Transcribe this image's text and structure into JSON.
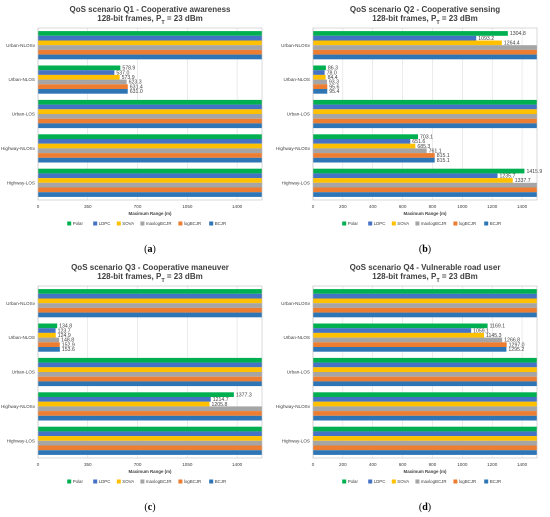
{
  "series": [
    {
      "name": "Polar",
      "color": "#00b050"
    },
    {
      "name": "LDPC",
      "color": "#4472c4"
    },
    {
      "name": "SOVA",
      "color": "#ffc000"
    },
    {
      "name": "maxlogBCJR",
      "color": "#a5a5a5"
    },
    {
      "name": "logBCJR",
      "color": "#ed7d31"
    },
    {
      "name": "BCJR",
      "color": "#2e75b6"
    }
  ],
  "panels": [
    {
      "label": "(a)",
      "title_line1": "QoS scenario Q1 - Cooperative awareness",
      "title_line2": "128-bit frames, P",
      "title_sub": "T",
      "title_tail": " = 23 dBm"
    },
    {
      "label": "(b)",
      "title_line1": "QoS scenario Q2 - Cooperative sensing",
      "title_line2": "128-bit frames, P",
      "title_sub": "T",
      "title_tail": " = 23 dBm"
    },
    {
      "label": "(c)",
      "title_line1": "QoS scenario Q3 - Cooperative maneuver",
      "title_line2": "128-bit frames, P",
      "title_sub": "T",
      "title_tail": " = 23 dBm"
    },
    {
      "label": "(d)",
      "title_line1": "QoS scenario Q4 - Vulnerable road user",
      "title_line2": "128-bit frames, P",
      "title_sub": "T",
      "title_tail": " = 23 dBm"
    }
  ],
  "chart_data": [
    {
      "type": "bar",
      "orientation": "horizontal",
      "title": "QoS scenario Q1 - Cooperative awareness 128-bit frames, PT = 23 dBm",
      "xlabel": "Maximum Range (m)",
      "ylabel": "",
      "xlim": [
        0,
        1575
      ],
      "xticks": [
        0,
        350,
        700,
        1050,
        1400
      ],
      "categories": [
        "Urban-NLOSv",
        "Urban-NLOS",
        "Urban-LOS",
        "Highway-NLOSv",
        "Highway-LOS"
      ],
      "series": [
        {
          "name": "Polar",
          "values": [
            1575,
            578.9,
            1575,
            1575,
            1575
          ],
          "labels": [
            "",
            "578.9",
            "",
            "",
            ""
          ]
        },
        {
          "name": "LDPC",
          "values": [
            1575,
            537.0,
            1575,
            1575,
            1575
          ],
          "labels": [
            "",
            "537.0",
            "",
            "",
            ""
          ]
        },
        {
          "name": "SOVA",
          "values": [
            1575,
            573.9,
            1575,
            1575,
            1575
          ],
          "labels": [
            "",
            "573.9",
            "",
            "",
            ""
          ]
        },
        {
          "name": "maxlogBCJR",
          "values": [
            1575,
            623.3,
            1575,
            1575,
            1575
          ],
          "labels": [
            "",
            "623.3",
            "",
            "",
            ""
          ]
        },
        {
          "name": "logBCJR",
          "values": [
            1575,
            631.4,
            1575,
            1575,
            1575
          ],
          "labels": [
            "",
            "631.4",
            "",
            "",
            ""
          ]
        },
        {
          "name": "BCJR",
          "values": [
            1575,
            631.0,
            1575,
            1575,
            1575
          ],
          "labels": [
            "",
            "631.0",
            "",
            "",
            ""
          ]
        }
      ],
      "legend": "bottom"
    },
    {
      "type": "bar",
      "orientation": "horizontal",
      "title": "QoS scenario Q2 - Cooperative sensing 128-bit frames, PT = 23 dBm",
      "xlabel": "Maximum Range (m)",
      "ylabel": "",
      "xlim": [
        0,
        1500
      ],
      "xticks": [
        0,
        200,
        400,
        600,
        800,
        1000,
        1200,
        1400
      ],
      "categories": [
        "Urban-NLOSv",
        "Urban-NLOS",
        "Urban-LOS",
        "Highway-NLOSv",
        "Highway-LOS"
      ],
      "series": [
        {
          "name": "Polar",
          "values": [
            1304.8,
            86.3,
            1500,
            703.1,
            1415.9
          ],
          "labels": [
            "1304.8",
            "86.3",
            "",
            "703.1",
            "1415.9"
          ]
        },
        {
          "name": "LDPC",
          "values": [
            1093.2,
            78.0,
            1500,
            651.6,
            1235.7
          ],
          "labels": [
            "1093.2",
            "78.0",
            "",
            "651.6",
            "1235.7"
          ]
        },
        {
          "name": "SOVA",
          "values": [
            1264.4,
            84.4,
            1500,
            685.3,
            1337.7
          ],
          "labels": [
            "1264.4",
            "84.4",
            "",
            "685.3",
            "1337.7"
          ]
        },
        {
          "name": "maxlogBCJR",
          "values": [
            1500,
            93.3,
            1500,
            761.1,
            1500
          ],
          "labels": [
            "",
            "93.3",
            "",
            "761.1",
            ""
          ]
        },
        {
          "name": "logBCJR",
          "values": [
            1500,
            95.6,
            1500,
            815.1,
            1500
          ],
          "labels": [
            "",
            "95.6",
            "",
            "815.1",
            ""
          ]
        },
        {
          "name": "BCJR",
          "values": [
            1500,
            95.4,
            1500,
            815.1,
            1500
          ],
          "labels": [
            "",
            "95.4",
            "",
            "815.1",
            ""
          ]
        }
      ],
      "legend": "bottom"
    },
    {
      "type": "bar",
      "orientation": "horizontal",
      "title": "QoS scenario Q3 - Cooperative maneuver 128-bit frames, PT = 23 dBm",
      "xlabel": "Maximum Range (m)",
      "ylabel": "",
      "xlim": [
        0,
        1575
      ],
      "xticks": [
        0,
        350,
        700,
        1050,
        1400
      ],
      "categories": [
        "Urban-NLOSv",
        "Urban-NLOS",
        "Urban-LOS",
        "Highway-NLOSv",
        "Highway-LOS"
      ],
      "series": [
        {
          "name": "Polar",
          "values": [
            1575,
            134.8,
            1575,
            1377.3,
            1575
          ],
          "labels": [
            "",
            "134.8",
            "",
            "1377.3",
            ""
          ]
        },
        {
          "name": "LDPC",
          "values": [
            1575,
            123.7,
            1575,
            1214.7,
            1575
          ],
          "labels": [
            "",
            "123.7",
            "",
            "1214.7",
            ""
          ]
        },
        {
          "name": "SOVA",
          "values": [
            1575,
            124.9,
            1575,
            1205.8,
            1575
          ],
          "labels": [
            "",
            "124.9",
            "",
            "1205.8",
            ""
          ]
        },
        {
          "name": "maxlogBCJR",
          "values": [
            1575,
            148.8,
            1575,
            1575,
            1575
          ],
          "labels": [
            "",
            "148.8",
            "",
            "",
            ""
          ]
        },
        {
          "name": "logBCJR",
          "values": [
            1575,
            152.9,
            1575,
            1575,
            1575
          ],
          "labels": [
            "",
            "152.9",
            "",
            "",
            ""
          ]
        },
        {
          "name": "BCJR",
          "values": [
            1575,
            153.6,
            1575,
            1575,
            1575
          ],
          "labels": [
            "",
            "153.6",
            "",
            "",
            ""
          ]
        }
      ],
      "legend": "bottom"
    },
    {
      "type": "bar",
      "orientation": "horizontal",
      "title": "QoS scenario Q4 - Vulnerable road user 128-bit frames, PT = 23 dBm",
      "xlabel": "Maximum Range (m)",
      "ylabel": "",
      "xlim": [
        0,
        1500
      ],
      "xticks": [
        0,
        200,
        400,
        600,
        800,
        1000,
        1200,
        1400
      ],
      "categories": [
        "Urban-NLOSv",
        "Urban-NLOS",
        "Urban-LOS",
        "Highway-NLOSv",
        "Highway-LOS"
      ],
      "series": [
        {
          "name": "Polar",
          "values": [
            1500,
            1169.1,
            1500,
            1500,
            1500
          ],
          "labels": [
            "",
            "1169.1",
            "",
            "",
            ""
          ]
        },
        {
          "name": "LDPC",
          "values": [
            1500,
            1059.1,
            1500,
            1500,
            1500
          ],
          "labels": [
            "",
            "1059.1",
            "",
            "",
            ""
          ]
        },
        {
          "name": "SOVA",
          "values": [
            1500,
            1145.3,
            1500,
            1500,
            1500
          ],
          "labels": [
            "",
            "1145.3",
            "",
            "",
            ""
          ]
        },
        {
          "name": "maxlogBCJR",
          "values": [
            1500,
            1266.8,
            1500,
            1500,
            1500
          ],
          "labels": [
            "",
            "1266.8",
            "",
            "",
            ""
          ]
        },
        {
          "name": "logBCJR",
          "values": [
            1500,
            1297.0,
            1500,
            1500,
            1500
          ],
          "labels": [
            "",
            "1297.0",
            "",
            "",
            ""
          ]
        },
        {
          "name": "BCJR",
          "values": [
            1500,
            1295.2,
            1500,
            1500,
            1500
          ],
          "labels": [
            "",
            "1295.2",
            "",
            "",
            ""
          ]
        }
      ],
      "legend": "bottom"
    }
  ]
}
